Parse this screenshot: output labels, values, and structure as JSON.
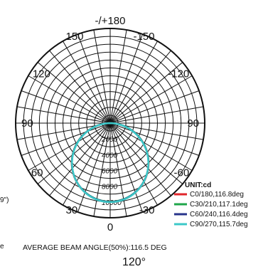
{
  "chart_data": {
    "type": "polar",
    "angle_labels": [
      "-/+180",
      "-150",
      "150",
      "-120",
      "120",
      "90",
      "90",
      "-60",
      "60",
      "-30",
      "30",
      "0"
    ],
    "radial_ticks": [
      2000,
      4000,
      6000,
      8000,
      10000
    ],
    "radial_max": 12000,
    "unit": "UNIT:cd",
    "series": [
      {
        "name": "C0/180,116.8deg",
        "color": "#e0262b",
        "beam_angle": 116.8,
        "peak": 10000
      },
      {
        "name": "C30/210,117.1deg",
        "color": "#1fa64a",
        "beam_angle": 117.1,
        "peak": 9950
      },
      {
        "name": "C60/240,116.4deg",
        "color": "#27348b",
        "beam_angle": 116.4,
        "peak": 9980
      },
      {
        "name": "C90/270,115.7deg",
        "color": "#3cc8c8",
        "beam_angle": 115.7,
        "peak": 10020
      }
    ],
    "average_beam_angle_text": "AVERAGE BEAM ANGLE(50%):116.5 DEG"
  },
  "edge_fragments": {
    "left_paren": "9\")",
    "left_e": "e"
  },
  "footer": {
    "beam_caption": "120°"
  }
}
